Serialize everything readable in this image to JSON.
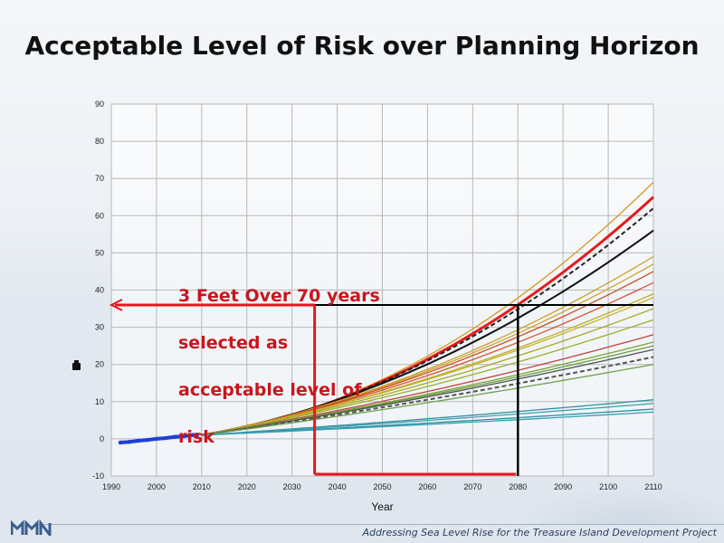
{
  "slide": {
    "title": "Acceptable Level of Risk over Planning Horizon",
    "footer": "Addressing Sea Level Rise for the Treasure Island Development Project",
    "callout_lines": [
      "3 Feet Over 70 years",
      "selected as",
      "acceptable level of",
      "risk"
    ]
  },
  "colors": {
    "threshold_arrow": "#e8161c",
    "threshold_lines": "#000000",
    "callout_text": "#c8161d",
    "observed": "#1f3fd6"
  },
  "chart_data": {
    "type": "line",
    "title": "",
    "xlabel": "Year",
    "ylabel": "",
    "xlim": [
      1990,
      2110
    ],
    "ylim": [
      -10,
      90
    ],
    "xticks": [
      1990,
      2000,
      2010,
      2020,
      2030,
      2040,
      2050,
      2060,
      2070,
      2080,
      2090,
      2100,
      2110
    ],
    "yticks": [
      -10,
      0,
      10,
      20,
      30,
      40,
      50,
      60,
      70,
      80,
      90
    ],
    "grid": true,
    "projection_start": [
      2010,
      1
    ],
    "observed": {
      "x": [
        1992,
        1994,
        1996,
        1998,
        2000,
        2002,
        2004,
        2006,
        2008,
        2009
      ],
      "y": [
        -1.0,
        -0.8,
        -0.5,
        -0.3,
        0.0,
        0.2,
        0.5,
        0.7,
        1.0,
        1.1
      ],
      "color": "#1f3fd6"
    },
    "series": [
      {
        "y2110": 69,
        "color": "#d49a20"
      },
      {
        "y2110": 65,
        "color": "#e81a1a",
        "width": 3
      },
      {
        "y2110": 62,
        "color": "#222222",
        "dash": true
      },
      {
        "y2110": 56,
        "color": "#111111",
        "width": 2
      },
      {
        "y2110": 49,
        "color": "#c9a028"
      },
      {
        "y2110": 47,
        "color": "#d0a030"
      },
      {
        "y2110": 45,
        "color": "#c85020"
      },
      {
        "y2110": 42,
        "color": "#d85030"
      },
      {
        "y2110": 39,
        "color": "#b8b020"
      },
      {
        "y2110": 38,
        "color": "#c8b030"
      },
      {
        "y2110": 35,
        "color": "#a8a828"
      },
      {
        "y2110": 32,
        "color": "#98b030"
      },
      {
        "y2110": 28,
        "color": "#c04040"
      },
      {
        "y2110": 26,
        "color": "#80a030"
      },
      {
        "y2110": 25,
        "color": "#60a040"
      },
      {
        "y2110": 24,
        "color": "#505050"
      },
      {
        "y2110": 22,
        "color": "#555555",
        "dash": true
      },
      {
        "y2110": 20,
        "color": "#70a050"
      },
      {
        "y2110": 10.5,
        "color": "#3090a0"
      },
      {
        "y2110": 9.5,
        "color": "#40a0b0"
      },
      {
        "y2110": 8,
        "color": "#2b8fa0"
      },
      {
        "y2110": 7.2,
        "color": "#35a0b0"
      }
    ],
    "threshold": {
      "level": 36,
      "year_start": 2035,
      "year_end": 2080,
      "arrow_to_year": 1990
    }
  }
}
